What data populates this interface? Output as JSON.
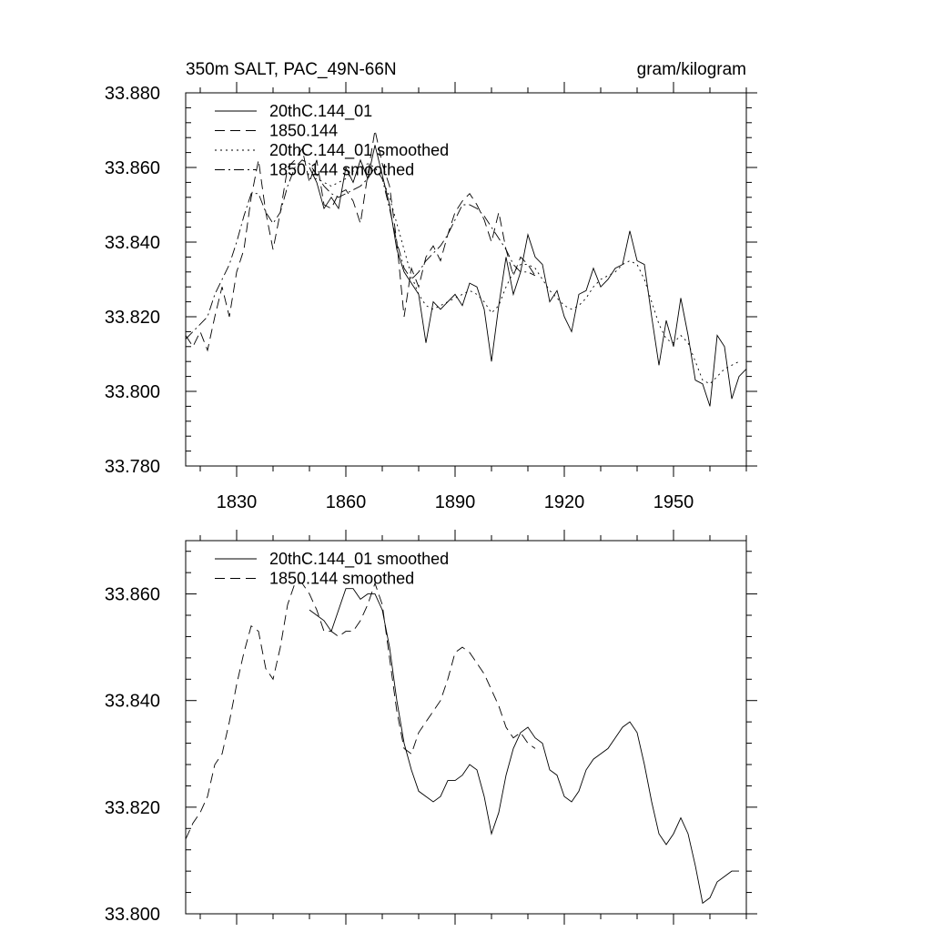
{
  "chart_data": [
    {
      "type": "line",
      "title_left": "350m SALT, PAC_49N-66N",
      "title_right": "gram/kilogram",
      "xlim": [
        1816,
        1970
      ],
      "ylim": [
        33.78,
        33.88
      ],
      "xticks": [
        1830,
        1860,
        1890,
        1920,
        1950
      ],
      "yticks": [
        33.78,
        33.8,
        33.82,
        33.84,
        33.86,
        33.88
      ],
      "ytick_labels": [
        "33.780",
        "33.800",
        "33.820",
        "33.840",
        "33.860",
        "33.880"
      ],
      "show_x_labels": true,
      "legend": [
        "20thC.144_01",
        "1850.144",
        "20thC.144_01 smoothed",
        "1850.144 smoothed"
      ],
      "series": [
        {
          "name": "20thC.144_01",
          "style": "solid",
          "x": [
            1850,
            1852,
            1854,
            1856,
            1858,
            1860,
            1862,
            1864,
            1866,
            1868,
            1870,
            1872,
            1874,
            1876,
            1878,
            1880,
            1882,
            1884,
            1886,
            1888,
            1890,
            1892,
            1894,
            1896,
            1898,
            1900,
            1902,
            1904,
            1906,
            1908,
            1910,
            1912,
            1914,
            1916,
            1918,
            1920,
            1922,
            1924,
            1926,
            1928,
            1930,
            1932,
            1934,
            1936,
            1938,
            1940,
            1942,
            1944,
            1946,
            1948,
            1950,
            1952,
            1954,
            1956,
            1958,
            1960,
            1962,
            1964,
            1966,
            1968,
            1970
          ],
          "y": [
            33.86,
            33.856,
            33.849,
            33.852,
            33.849,
            33.86,
            33.856,
            33.862,
            33.857,
            33.866,
            33.858,
            33.85,
            33.838,
            33.832,
            33.829,
            33.826,
            33.813,
            33.824,
            33.822,
            33.824,
            33.826,
            33.823,
            33.829,
            33.828,
            33.822,
            33.808,
            33.823,
            33.836,
            33.826,
            33.832,
            33.842,
            33.836,
            33.834,
            33.824,
            33.827,
            33.82,
            33.816,
            33.826,
            33.827,
            33.833,
            33.828,
            33.83,
            33.833,
            33.834,
            33.843,
            33.835,
            33.834,
            33.82,
            33.807,
            33.819,
            33.812,
            33.825,
            33.815,
            33.803,
            33.802,
            33.796,
            33.815,
            33.812,
            33.798,
            33.804,
            33.806
          ]
        },
        {
          "name": "1850.144",
          "style": "dashed",
          "x": [
            1816,
            1818,
            1820,
            1822,
            1824,
            1826,
            1828,
            1830,
            1832,
            1834,
            1836,
            1838,
            1840,
            1842,
            1844,
            1846,
            1848,
            1850,
            1852,
            1854,
            1856,
            1858,
            1860,
            1862,
            1864,
            1866,
            1868,
            1870,
            1872,
            1874,
            1876,
            1878,
            1880,
            1882,
            1884,
            1886,
            1888,
            1890,
            1892,
            1894,
            1896,
            1898,
            1900,
            1902,
            1904,
            1906,
            1908,
            1910,
            1912
          ],
          "y": [
            33.815,
            33.812,
            33.816,
            33.811,
            33.82,
            33.828,
            33.82,
            33.832,
            33.838,
            33.852,
            33.862,
            33.848,
            33.838,
            33.848,
            33.86,
            33.862,
            33.865,
            33.856,
            33.862,
            33.85,
            33.849,
            33.853,
            33.854,
            33.851,
            33.845,
            33.858,
            33.87,
            33.861,
            33.855,
            33.84,
            33.82,
            33.833,
            33.828,
            33.836,
            33.839,
            33.835,
            33.842,
            33.848,
            33.851,
            33.853,
            33.85,
            33.846,
            33.84,
            33.848,
            33.838,
            33.831,
            33.836,
            33.834,
            33.831
          ]
        },
        {
          "name": "20thC.144_01 smoothed",
          "style": "dotted",
          "x": [
            1850,
            1852,
            1854,
            1856,
            1858,
            1860,
            1862,
            1864,
            1866,
            1868,
            1870,
            1872,
            1874,
            1876,
            1878,
            1880,
            1882,
            1884,
            1886,
            1888,
            1890,
            1892,
            1894,
            1896,
            1898,
            1900,
            1902,
            1904,
            1906,
            1908,
            1910,
            1912,
            1914,
            1916,
            1918,
            1920,
            1922,
            1924,
            1926,
            1928,
            1930,
            1932,
            1934,
            1936,
            1938,
            1940,
            1942,
            1944,
            1946,
            1948,
            1950,
            1952,
            1954,
            1956,
            1958,
            1960,
            1962,
            1964,
            1966,
            1968
          ],
          "y": [
            33.857,
            33.857,
            33.856,
            33.855,
            33.856,
            33.857,
            33.859,
            33.86,
            33.861,
            33.86,
            33.857,
            33.852,
            33.845,
            33.838,
            33.831,
            33.826,
            33.823,
            33.822,
            33.823,
            33.824,
            33.825,
            33.826,
            33.827,
            33.826,
            33.824,
            33.821,
            33.823,
            33.828,
            33.832,
            33.834,
            33.834,
            33.833,
            33.83,
            33.827,
            33.825,
            33.823,
            33.822,
            33.823,
            33.825,
            33.828,
            33.83,
            33.831,
            33.832,
            33.834,
            33.835,
            33.834,
            33.83,
            33.824,
            33.818,
            33.814,
            33.813,
            33.815,
            33.813,
            33.808,
            33.803,
            33.802,
            33.804,
            33.806,
            33.807,
            33.808
          ]
        },
        {
          "name": "1850.144 smoothed",
          "style": "dashdot",
          "x": [
            1816,
            1818,
            1820,
            1822,
            1824,
            1826,
            1828,
            1830,
            1832,
            1834,
            1836,
            1838,
            1840,
            1842,
            1844,
            1846,
            1848,
            1850,
            1852,
            1854,
            1856,
            1858,
            1860,
            1862,
            1864,
            1866,
            1868,
            1870,
            1872,
            1874,
            1876,
            1878,
            1880,
            1882,
            1884,
            1886,
            1888,
            1890,
            1892,
            1894,
            1896,
            1898,
            1900,
            1902,
            1904,
            1906,
            1908,
            1910,
            1912
          ],
          "y": [
            33.814,
            33.816,
            33.818,
            33.82,
            33.826,
            33.83,
            33.834,
            33.84,
            33.847,
            33.853,
            33.853,
            33.848,
            33.845,
            33.848,
            33.855,
            33.86,
            33.862,
            33.861,
            33.858,
            33.855,
            33.853,
            33.852,
            33.853,
            33.854,
            33.855,
            33.857,
            33.86,
            33.857,
            33.849,
            33.84,
            33.833,
            33.83,
            33.832,
            33.835,
            33.837,
            33.839,
            33.842,
            33.846,
            33.85,
            33.85,
            33.849,
            33.847,
            33.844,
            33.841,
            33.838,
            33.834,
            33.832,
            33.832,
            33.831
          ]
        }
      ]
    },
    {
      "type": "line",
      "xlim": [
        1816,
        1970
      ],
      "ylim": [
        33.8,
        33.87
      ],
      "xticks": [
        1830,
        1860,
        1890,
        1920,
        1950
      ],
      "yticks": [
        33.8,
        33.82,
        33.84,
        33.86
      ],
      "ytick_labels": [
        "33.800",
        "33.820",
        "33.840",
        "33.860"
      ],
      "show_x_labels": false,
      "legend": [
        "20thC.144_01 smoothed",
        "1850.144 smoothed"
      ],
      "series": [
        {
          "name": "20thC.144_01 smoothed",
          "style": "solid",
          "x": [
            1850,
            1852,
            1854,
            1856,
            1858,
            1860,
            1862,
            1864,
            1866,
            1868,
            1870,
            1872,
            1874,
            1876,
            1878,
            1880,
            1882,
            1884,
            1886,
            1888,
            1890,
            1892,
            1894,
            1896,
            1898,
            1900,
            1902,
            1904,
            1906,
            1908,
            1910,
            1912,
            1914,
            1916,
            1918,
            1920,
            1922,
            1924,
            1926,
            1928,
            1930,
            1932,
            1934,
            1936,
            1938,
            1940,
            1942,
            1944,
            1946,
            1948,
            1950,
            1952,
            1954,
            1956,
            1958,
            1960,
            1962,
            1964,
            1966,
            1968
          ],
          "y": [
            33.857,
            33.856,
            33.855,
            33.853,
            33.857,
            33.861,
            33.861,
            33.859,
            33.86,
            33.86,
            33.857,
            33.85,
            33.84,
            33.832,
            33.827,
            33.823,
            33.822,
            33.821,
            33.822,
            33.825,
            33.825,
            33.826,
            33.828,
            33.827,
            33.822,
            33.815,
            33.819,
            33.826,
            33.831,
            33.834,
            33.835,
            33.833,
            33.832,
            33.827,
            33.826,
            33.822,
            33.821,
            33.823,
            33.827,
            33.829,
            33.83,
            33.831,
            33.833,
            33.835,
            33.836,
            33.834,
            33.828,
            33.821,
            33.815,
            33.813,
            33.815,
            33.818,
            33.815,
            33.809,
            33.802,
            33.803,
            33.806,
            33.807,
            33.808,
            33.808
          ]
        },
        {
          "name": "1850.144 smoothed",
          "style": "dashed",
          "x": [
            1816,
            1818,
            1820,
            1822,
            1824,
            1826,
            1828,
            1830,
            1832,
            1834,
            1836,
            1838,
            1840,
            1842,
            1844,
            1846,
            1848,
            1850,
            1852,
            1854,
            1856,
            1858,
            1860,
            1862,
            1864,
            1866,
            1868,
            1870,
            1872,
            1874,
            1876,
            1878,
            1880,
            1882,
            1884,
            1886,
            1888,
            1890,
            1892,
            1894,
            1896,
            1898,
            1900,
            1902,
            1904,
            1906,
            1908,
            1910,
            1912
          ],
          "y": [
            33.814,
            33.817,
            33.819,
            33.822,
            33.828,
            33.83,
            33.836,
            33.843,
            33.849,
            33.854,
            33.853,
            33.846,
            33.844,
            33.85,
            33.858,
            33.862,
            33.862,
            33.86,
            33.857,
            33.853,
            33.853,
            33.852,
            33.853,
            33.853,
            33.855,
            33.858,
            33.862,
            33.858,
            33.848,
            33.838,
            33.831,
            33.83,
            33.834,
            33.836,
            33.838,
            33.84,
            33.844,
            33.849,
            33.85,
            33.849,
            33.847,
            33.845,
            33.842,
            33.839,
            33.835,
            33.833,
            33.834,
            33.832,
            33.831
          ]
        }
      ]
    }
  ]
}
